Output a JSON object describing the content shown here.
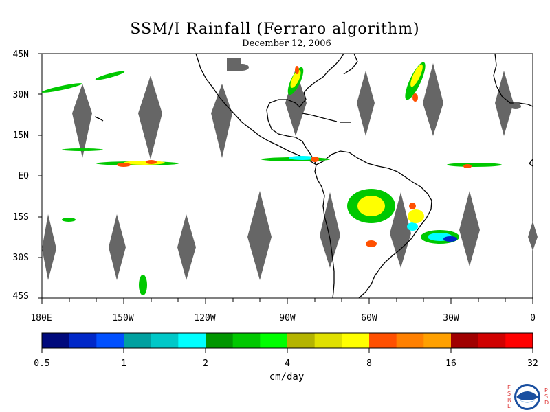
{
  "title": "SSM/I Rainfall (Ferraro algorithm)",
  "date": "December 12, 2006",
  "lat_labels": [
    "45N",
    "30N",
    "15N",
    "EQ",
    "15S",
    "30S",
    "45S"
  ],
  "lon_labels": [
    "180E",
    "150W",
    "120W",
    "90W",
    "60W",
    "30W",
    "0"
  ],
  "colorbar": {
    "colors": [
      "#000a7c",
      "#0028c8",
      "#0050ff",
      "#00a0a0",
      "#00c8c8",
      "#00ffff",
      "#009600",
      "#00c800",
      "#00ff00",
      "#b4b400",
      "#e0e000",
      "#ffff00",
      "#ff5000",
      "#ff8000",
      "#ffa000",
      "#a00000",
      "#d00000",
      "#ff0000"
    ],
    "tick_labels": [
      "0.5",
      "1",
      "2",
      "4",
      "8",
      "16",
      "32"
    ],
    "units": "cm/day"
  },
  "logo": {
    "name": "NOAA",
    "left_letters": "ESRL",
    "right_letters": "PSD"
  }
}
